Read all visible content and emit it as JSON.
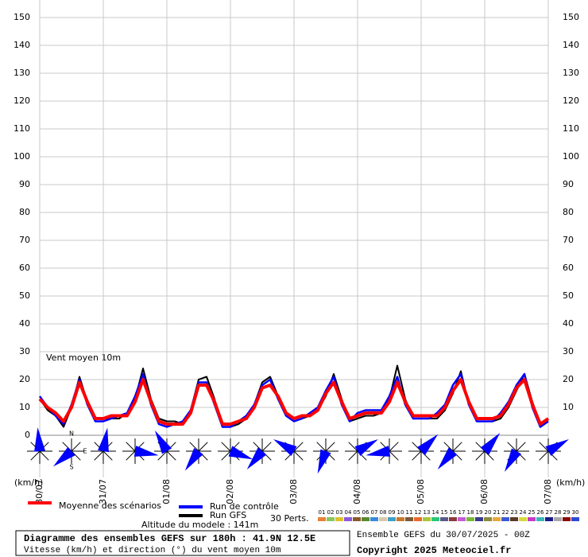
{
  "chart_data": {
    "type": "line",
    "title": "Diagramme des ensembles GEFS sur 180h : 41.9N 12.5E",
    "subtitle": "Vitesse (km/h) et direction (°) du vent moyen 10m",
    "annotation": "Vent moyen 10m",
    "y_label": "(km/h)",
    "altitude": "Altitude du modele : 141m",
    "run": "Ensemble GEFS du 30/07/2025 - 00Z",
    "copyright": "Copyright 2025 Meteociel.fr",
    "x": [
      0,
      3,
      6,
      9,
      12,
      15,
      18,
      21,
      24,
      27,
      30,
      33,
      36,
      39,
      42,
      45,
      48,
      51,
      54,
      57,
      60,
      63,
      66,
      69,
      72,
      75,
      78,
      81,
      84,
      87,
      90,
      93,
      96,
      99,
      102,
      105,
      108,
      111,
      114,
      117,
      120,
      123,
      126,
      129,
      132,
      135,
      138,
      141,
      144,
      147,
      150,
      153,
      156,
      159,
      162,
      165,
      168,
      171,
      174,
      177,
      180,
      183,
      186,
      189,
      192
    ],
    "xlim": [
      0,
      192
    ],
    "xticks": [
      {
        "value": 0,
        "label": "30/07"
      },
      {
        "value": 24,
        "label": "31/07"
      },
      {
        "value": 48,
        "label": "01/08"
      },
      {
        "value": 72,
        "label": "02/08"
      },
      {
        "value": 96,
        "label": "03/08"
      },
      {
        "value": 120,
        "label": "04/08"
      },
      {
        "value": 144,
        "label": "05/08"
      },
      {
        "value": 168,
        "label": "06/08"
      },
      {
        "value": 192,
        "label": "07/08"
      }
    ],
    "ylim": [
      0,
      150
    ],
    "yticks": [
      0,
      10,
      20,
      30,
      40,
      50,
      60,
      70,
      80,
      90,
      100,
      110,
      120,
      130,
      140,
      150
    ],
    "grid": true,
    "series": [
      {
        "name": "Run GFS",
        "color": "#000000",
        "values": [
          13,
          9,
          7,
          3,
          10,
          21,
          12,
          6,
          6,
          6,
          6,
          8,
          13,
          24,
          13,
          6,
          5,
          5,
          4,
          9,
          20,
          21,
          13,
          3,
          3,
          4,
          6,
          11,
          19,
          21,
          14,
          8,
          5,
          6,
          7,
          9,
          14,
          22,
          13,
          5,
          6,
          7,
          7,
          8,
          13,
          25,
          13,
          6,
          6,
          6,
          6,
          9,
          15,
          23,
          11,
          5,
          5,
          5,
          6,
          10,
          16,
          22,
          12,
          4,
          5
        ]
      },
      {
        "name": "Run de contrôle",
        "color": "#0000ff",
        "values": [
          14,
          10,
          7,
          4,
          11,
          20,
          11,
          5,
          5,
          6,
          7,
          8,
          14,
          22,
          11,
          4,
          3,
          4,
          5,
          9,
          19,
          19,
          11,
          3,
          3,
          5,
          7,
          11,
          18,
          20,
          13,
          7,
          5,
          6,
          8,
          10,
          16,
          21,
          11,
          5,
          8,
          9,
          9,
          9,
          14,
          21,
          11,
          6,
          6,
          6,
          8,
          11,
          18,
          22,
          11,
          5,
          5,
          5,
          8,
          12,
          18,
          22,
          10,
          3,
          5
        ]
      },
      {
        "name": "Moyenne des scénarios",
        "color": "#ff0000",
        "values": [
          13,
          10,
          8,
          5,
          10,
          19,
          12,
          6,
          6,
          7,
          7,
          7,
          12,
          20,
          12,
          5,
          4,
          4,
          4,
          8,
          18,
          18,
          12,
          4,
          4,
          5,
          6,
          10,
          17,
          18,
          14,
          8,
          6,
          7,
          7,
          9,
          15,
          19,
          12,
          6,
          7,
          8,
          8,
          8,
          12,
          19,
          12,
          7,
          7,
          7,
          7,
          10,
          16,
          20,
          12,
          6,
          6,
          6,
          7,
          11,
          17,
          20,
          11,
          4,
          6
        ]
      }
    ],
    "perturbations": {
      "label": "30 Perts.",
      "members": [
        {
          "name": "01",
          "color": "#e8823a"
        },
        {
          "name": "02",
          "color": "#8ac65a"
        },
        {
          "name": "03",
          "color": "#e0c02a"
        },
        {
          "name": "04",
          "color": "#8a5ad8"
        },
        {
          "name": "05",
          "color": "#8a5a2a"
        },
        {
          "name": "06",
          "color": "#5a8a2a"
        },
        {
          "name": "07",
          "color": "#3a8ad8"
        },
        {
          "name": "08",
          "color": "#d8c8a8"
        },
        {
          "name": "09",
          "color": "#3aa0c8"
        },
        {
          "name": "10",
          "color": "#c87a2a"
        },
        {
          "name": "11",
          "color": "#7a5a3a"
        },
        {
          "name": "12",
          "color": "#e86a2a"
        },
        {
          "name": "13",
          "color": "#a8c83a"
        },
        {
          "name": "14",
          "color": "#2ac87a"
        },
        {
          "name": "15",
          "color": "#5a5a8a"
        },
        {
          "name": "16",
          "color": "#8a3a3a"
        },
        {
          "name": "17",
          "color": "#c85ad8"
        },
        {
          "name": "18",
          "color": "#7ab83a"
        },
        {
          "name": "19",
          "color": "#3a3a8a"
        },
        {
          "name": "20",
          "color": "#8a8a3a"
        },
        {
          "name": "21",
          "color": "#e8a83a"
        },
        {
          "name": "22",
          "color": "#3a5ad8"
        },
        {
          "name": "23",
          "color": "#5a3a2a"
        },
        {
          "name": "24",
          "color": "#d8d83a"
        },
        {
          "name": "25",
          "color": "#c83ac8"
        },
        {
          "name": "26",
          "color": "#3ab8b8"
        },
        {
          "name": "27",
          "color": "#1a1a8a"
        },
        {
          "name": "28",
          "color": "#a8a8a8"
        },
        {
          "name": "29",
          "color": "#8a0a0a"
        },
        {
          "name": "30",
          "color": "#2a4ad8"
        }
      ]
    },
    "wind": {
      "color": "#0000ff",
      "compass": [
        "N",
        "E",
        "S"
      ],
      "x": [
        0,
        12,
        24,
        36,
        48,
        60,
        72,
        84,
        96,
        108,
        120,
        132,
        144,
        156,
        168,
        180,
        192
      ],
      "direction": [
        355,
        230,
        10,
        100,
        330,
        215,
        110,
        220,
        300,
        200,
        60,
        260,
        45,
        220,
        40,
        210,
        60
      ]
    }
  }
}
